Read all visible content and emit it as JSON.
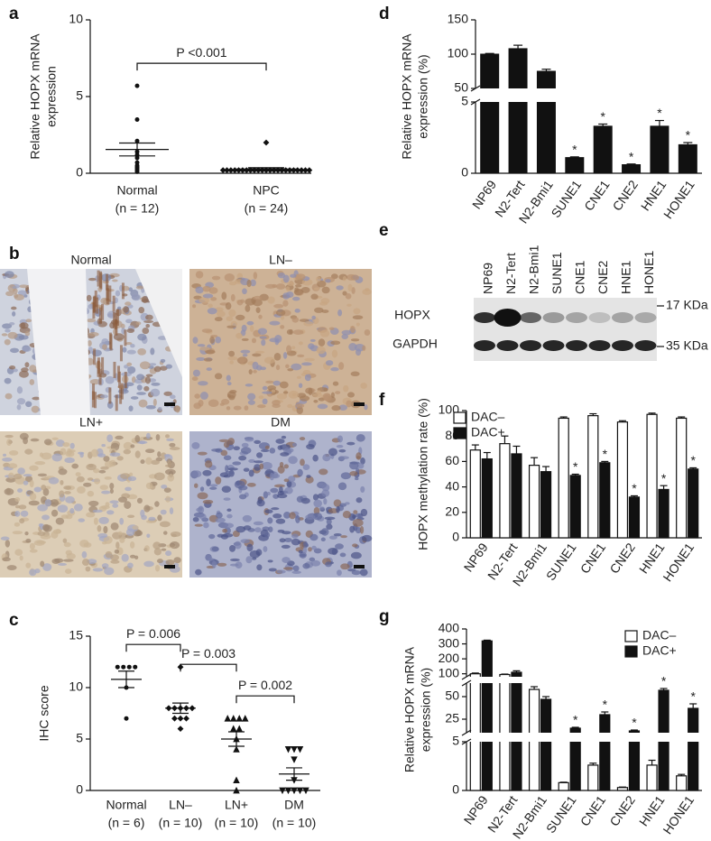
{
  "chart_data": [
    {
      "type": "dotplot",
      "panel": "a",
      "ylabel": [
        "Relative HOPX mRNA",
        "expression"
      ],
      "categories": [
        "Normal",
        "NPC"
      ],
      "category_notes": [
        "(n = 12)",
        "(n = 24)"
      ],
      "markers": [
        "circle",
        "diamond"
      ],
      "points": [
        [
          5.7,
          3.5,
          2.1,
          1.4,
          1.2,
          1.0,
          0.7,
          0.5,
          0.4,
          0.3,
          0.2,
          0.1
        ],
        [
          2.0,
          0.2,
          0.2,
          0.2,
          0.2,
          0.2,
          0.2,
          0.2,
          0.2,
          0.2,
          0.2,
          0.2,
          0.2,
          0.2,
          0.2,
          0.2,
          0.2,
          0.2,
          0.2,
          0.2,
          0.2,
          0.2,
          0.2,
          0.2
        ]
      ],
      "means": [
        1.55,
        0.27
      ],
      "sems": [
        0.42,
        0.09
      ],
      "ylim": [
        0,
        10
      ],
      "yticks": [
        0,
        5,
        10
      ],
      "annotations": [
        "P <0.001"
      ]
    },
    {
      "type": "dotplot",
      "panel": "c",
      "ylabel": [
        "IHC score"
      ],
      "categories": [
        "Normal",
        "LN–",
        "LN+",
        "DM"
      ],
      "category_notes": [
        "(n = 6)",
        "(n = 10)",
        "(n = 10)",
        "(n = 10)"
      ],
      "markers": [
        "circle",
        "diamond",
        "triangle",
        "triangle-down"
      ],
      "points": [
        [
          12,
          12,
          12,
          12,
          10,
          7
        ],
        [
          12,
          8,
          8,
          8,
          8,
          8,
          7,
          7,
          7,
          6
        ],
        [
          7,
          7,
          7,
          7,
          6,
          6,
          5,
          4,
          1,
          0
        ],
        [
          4,
          4,
          4,
          3,
          1,
          0,
          0,
          0,
          0,
          0
        ]
      ],
      "means": [
        10.8,
        8,
        5,
        1.6
      ],
      "sems": [
        0.8,
        0.5,
        0.7,
        0.6
      ],
      "ylim": [
        0,
        15
      ],
      "yticks": [
        0,
        5,
        10,
        15
      ],
      "annotations": [
        "P = 0.006",
        "P = 0.003",
        "P = 0.002"
      ]
    },
    {
      "type": "bar",
      "panel": "d",
      "ylabel": [
        "Relative HOPX mRNA",
        "expression (%)"
      ],
      "categories": [
        "NP69",
        "N2-Tert",
        "N2-Bmi1",
        "SUNE1",
        "CNE1",
        "CNE2",
        "HNE1",
        "HONE1"
      ],
      "values": [
        100,
        108,
        75,
        1.1,
        3.3,
        0.6,
        3.3,
        2.0
      ],
      "errors": [
        1,
        5,
        3,
        0.05,
        0.15,
        0.05,
        0.4,
        0.15
      ],
      "asterisks": [
        null,
        null,
        null,
        "*",
        "*",
        "*",
        "*",
        "*"
      ],
      "color": "#111111",
      "ybreaks": [
        [
          0,
          5
        ],
        [
          50,
          150
        ]
      ],
      "yticks": [
        0,
        5,
        50,
        100,
        150
      ]
    },
    {
      "type": "grouped_bar",
      "panel": "f",
      "ylabel": [
        "HOPX methylation rate (%)"
      ],
      "categories": [
        "NP69",
        "N2-Tert",
        "N2-Bmi1",
        "SUNE1",
        "CNE1",
        "CNE2",
        "HNE1",
        "HONE1"
      ],
      "series": [
        {
          "name": "DAC–",
          "color": "#ffffff",
          "values": [
            69,
            74,
            57,
            94,
            96,
            91,
            97,
            94
          ],
          "errors": [
            4,
            6,
            6,
            1,
            1.5,
            1,
            1,
            1
          ],
          "asterisks": [
            null,
            null,
            null,
            null,
            null,
            null,
            null,
            null
          ]
        },
        {
          "name": "DAC+",
          "color": "#111111",
          "values": [
            62,
            66,
            52,
            49,
            59,
            32,
            38,
            54
          ],
          "errors": [
            5,
            6,
            4,
            1,
            1,
            1,
            3,
            1
          ],
          "asterisks": [
            null,
            null,
            null,
            "*",
            "*",
            "*",
            "*",
            "*"
          ]
        }
      ],
      "ylim": [
        0,
        100
      ],
      "yticks": [
        0,
        20,
        40,
        60,
        80,
        100
      ],
      "legend": "top-left"
    },
    {
      "type": "grouped_bar",
      "panel": "g",
      "ylabel": [
        "Relative HOPX mRNA",
        "expression (%)"
      ],
      "categories": [
        "NP69",
        "N2-Tert",
        "N2-Bmi1",
        "SUNE1",
        "CNE1",
        "CNE2",
        "HNE1",
        "HONE1"
      ],
      "series": [
        {
          "name": "DAC–",
          "color": "#ffffff",
          "values": [
            100,
            95,
            58,
            0.8,
            2.6,
            0.3,
            2.6,
            1.5
          ],
          "errors": [
            5,
            3,
            3,
            0.05,
            0.2,
            0.05,
            0.5,
            0.15
          ],
          "asterisks": [
            null,
            null,
            null,
            null,
            null,
            null,
            null,
            null
          ]
        },
        {
          "name": "DAC+",
          "color": "#111111",
          "values": [
            320,
            110,
            47,
            15,
            30,
            12,
            57,
            37
          ],
          "errors": [
            5,
            10,
            3,
            1,
            3,
            1,
            2,
            5
          ],
          "asterisks": [
            null,
            null,
            null,
            "*",
            "*",
            "*",
            "*",
            "*"
          ]
        }
      ],
      "ybreaks": [
        [
          0,
          5
        ],
        [
          10,
          65
        ],
        [
          80,
          400
        ]
      ],
      "yticks": [
        0,
        5,
        25,
        50,
        100,
        200,
        300,
        400
      ],
      "legend": "top-right"
    }
  ],
  "ihc": {
    "panel": "b",
    "labels": [
      "Normal",
      "LN–",
      "LN+",
      "DM"
    ]
  },
  "blot": {
    "panel": "e",
    "lanes": [
      "NP69",
      "N2-Tert",
      "N2-Bmi1",
      "SUNE1",
      "CNE1",
      "CNE2",
      "HNE1",
      "HONE1"
    ],
    "rows": [
      "HOPX",
      "GAPDH"
    ],
    "markers": [
      "17 KDa",
      "35 KDa"
    ]
  }
}
